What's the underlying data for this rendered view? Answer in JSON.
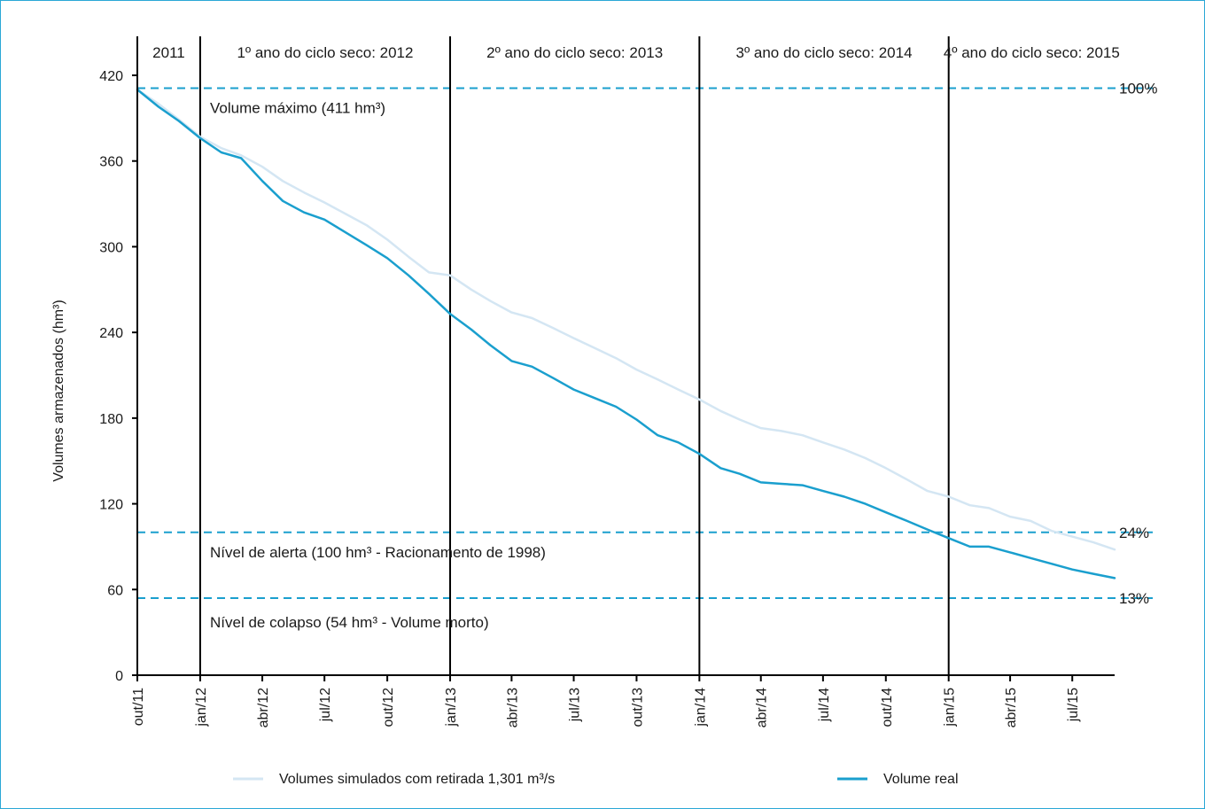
{
  "chart_data": {
    "type": "line",
    "ylabel": "Volumes armazenados (hm³)",
    "xlabel": "",
    "ylim": [
      0,
      420
    ],
    "yticks": [
      0,
      60,
      120,
      180,
      240,
      300,
      360,
      420
    ],
    "x_range": [
      "2011-10",
      "2015-09"
    ],
    "x_ticks": [
      {
        "label": "out/11",
        "date": "2011-10"
      },
      {
        "label": "jan/12",
        "date": "2012-01"
      },
      {
        "label": "abr/12",
        "date": "2012-04"
      },
      {
        "label": "jul/12",
        "date": "2012-07"
      },
      {
        "label": "out/12",
        "date": "2012-10"
      },
      {
        "label": "jan/13",
        "date": "2013-01"
      },
      {
        "label": "abr/13",
        "date": "2013-04"
      },
      {
        "label": "jul/13",
        "date": "2013-07"
      },
      {
        "label": "out/13",
        "date": "2013-10"
      },
      {
        "label": "jan/14",
        "date": "2014-01"
      },
      {
        "label": "abr/14",
        "date": "2014-04"
      },
      {
        "label": "jul/14",
        "date": "2014-07"
      },
      {
        "label": "out/14",
        "date": "2014-10"
      },
      {
        "label": "jan/15",
        "date": "2015-01"
      },
      {
        "label": "abr/15",
        "date": "2015-04"
      },
      {
        "label": "jul/15",
        "date": "2015-07"
      }
    ],
    "periods": [
      {
        "label": "2011",
        "start": "2011-10",
        "end": "2012-01"
      },
      {
        "label": "1º ano do ciclo seco: 2012",
        "start": "2012-01",
        "end": "2013-01"
      },
      {
        "label": "2º ano do ciclo seco: 2013",
        "start": "2013-01",
        "end": "2014-01"
      },
      {
        "label": "3º ano do ciclo seco: 2014",
        "start": "2014-01",
        "end": "2015-01"
      },
      {
        "label": "4º ano do ciclo seco: 2015",
        "start": "2015-01",
        "end": "2015-09"
      }
    ],
    "reference_lines": [
      {
        "value": 411,
        "label": "Volume máximo (411 hm³)",
        "pct": "100%",
        "color": "#1a9fce"
      },
      {
        "value": 100,
        "label": "Nível de alerta (100 hm³ - Racionamento de 1998)",
        "pct": "24%",
        "color": "#1a9fce"
      },
      {
        "value": 54,
        "label": "Nível de colapso (54 hm³ - Volume morto)",
        "pct": "13%",
        "color": "#1a9fce"
      }
    ],
    "series": [
      {
        "name": "Volumes simulados com retirada 1,301 m³/s",
        "color": "#d4e6f3",
        "points": [
          [
            "2011-10-01",
            410
          ],
          [
            "2011-11-01",
            400
          ],
          [
            "2011-12-01",
            389
          ],
          [
            "2012-01-01",
            377
          ],
          [
            "2012-02-01",
            369
          ],
          [
            "2012-03-01",
            364
          ],
          [
            "2012-04-01",
            356
          ],
          [
            "2012-05-01",
            346
          ],
          [
            "2012-06-01",
            338
          ],
          [
            "2012-07-01",
            331
          ],
          [
            "2012-08-01",
            323
          ],
          [
            "2012-09-01",
            315
          ],
          [
            "2012-10-01",
            305
          ],
          [
            "2012-11-01",
            293
          ],
          [
            "2012-12-01",
            282
          ],
          [
            "2013-01-01",
            280
          ],
          [
            "2013-02-01",
            270
          ],
          [
            "2013-03-01",
            262
          ],
          [
            "2013-04-01",
            254
          ],
          [
            "2013-05-01",
            250
          ],
          [
            "2013-06-01",
            243
          ],
          [
            "2013-07-01",
            236
          ],
          [
            "2013-08-01",
            229
          ],
          [
            "2013-09-01",
            222
          ],
          [
            "2013-10-01",
            214
          ],
          [
            "2013-11-01",
            207
          ],
          [
            "2013-12-01",
            200
          ],
          [
            "2014-01-01",
            193
          ],
          [
            "2014-02-01",
            185
          ],
          [
            "2014-03-01",
            179
          ],
          [
            "2014-04-01",
            173
          ],
          [
            "2014-05-01",
            171
          ],
          [
            "2014-06-01",
            168
          ],
          [
            "2014-07-01",
            163
          ],
          [
            "2014-08-01",
            158
          ],
          [
            "2014-09-01",
            152
          ],
          [
            "2014-10-01",
            145
          ],
          [
            "2014-11-01",
            137
          ],
          [
            "2014-12-01",
            129
          ],
          [
            "2015-01-01",
            125
          ],
          [
            "2015-02-01",
            119
          ],
          [
            "2015-03-01",
            117
          ],
          [
            "2015-04-01",
            111
          ],
          [
            "2015-05-01",
            108
          ],
          [
            "2015-06-01",
            101
          ],
          [
            "2015-07-01",
            97
          ],
          [
            "2015-08-01",
            93
          ],
          [
            "2015-09-01",
            88
          ]
        ]
      },
      {
        "name": "Volume real",
        "color": "#1a9fce",
        "points": [
          [
            "2011-10-01",
            410
          ],
          [
            "2011-11-01",
            398
          ],
          [
            "2011-12-01",
            388
          ],
          [
            "2012-01-01",
            376
          ],
          [
            "2012-02-01",
            366
          ],
          [
            "2012-03-01",
            362
          ],
          [
            "2012-04-01",
            346
          ],
          [
            "2012-05-01",
            332
          ],
          [
            "2012-06-01",
            324
          ],
          [
            "2012-07-01",
            319
          ],
          [
            "2012-08-01",
            310
          ],
          [
            "2012-09-01",
            301
          ],
          [
            "2012-10-01",
            292
          ],
          [
            "2012-11-01",
            280
          ],
          [
            "2012-12-01",
            267
          ],
          [
            "2013-01-01",
            253
          ],
          [
            "2013-02-01",
            242
          ],
          [
            "2013-03-01",
            231
          ],
          [
            "2013-04-01",
            220
          ],
          [
            "2013-05-01",
            216
          ],
          [
            "2013-06-01",
            208
          ],
          [
            "2013-07-01",
            200
          ],
          [
            "2013-08-01",
            194
          ],
          [
            "2013-09-01",
            188
          ],
          [
            "2013-10-01",
            179
          ],
          [
            "2013-11-01",
            168
          ],
          [
            "2013-12-01",
            163
          ],
          [
            "2014-01-01",
            155
          ],
          [
            "2014-02-01",
            145
          ],
          [
            "2014-03-01",
            141
          ],
          [
            "2014-04-01",
            135
          ],
          [
            "2014-05-01",
            134
          ],
          [
            "2014-06-01",
            133
          ],
          [
            "2014-07-01",
            129
          ],
          [
            "2014-08-01",
            125
          ],
          [
            "2014-09-01",
            120
          ],
          [
            "2014-10-01",
            114
          ],
          [
            "2014-11-01",
            108
          ],
          [
            "2014-12-01",
            102
          ],
          [
            "2015-01-01",
            96
          ],
          [
            "2015-02-01",
            90
          ],
          [
            "2015-03-01",
            90
          ],
          [
            "2015-04-01",
            86
          ],
          [
            "2015-05-01",
            82
          ],
          [
            "2015-06-01",
            78
          ],
          [
            "2015-07-01",
            74
          ],
          [
            "2015-08-01",
            71
          ],
          [
            "2015-09-01",
            68
          ]
        ]
      }
    ],
    "legend": "bottom"
  }
}
